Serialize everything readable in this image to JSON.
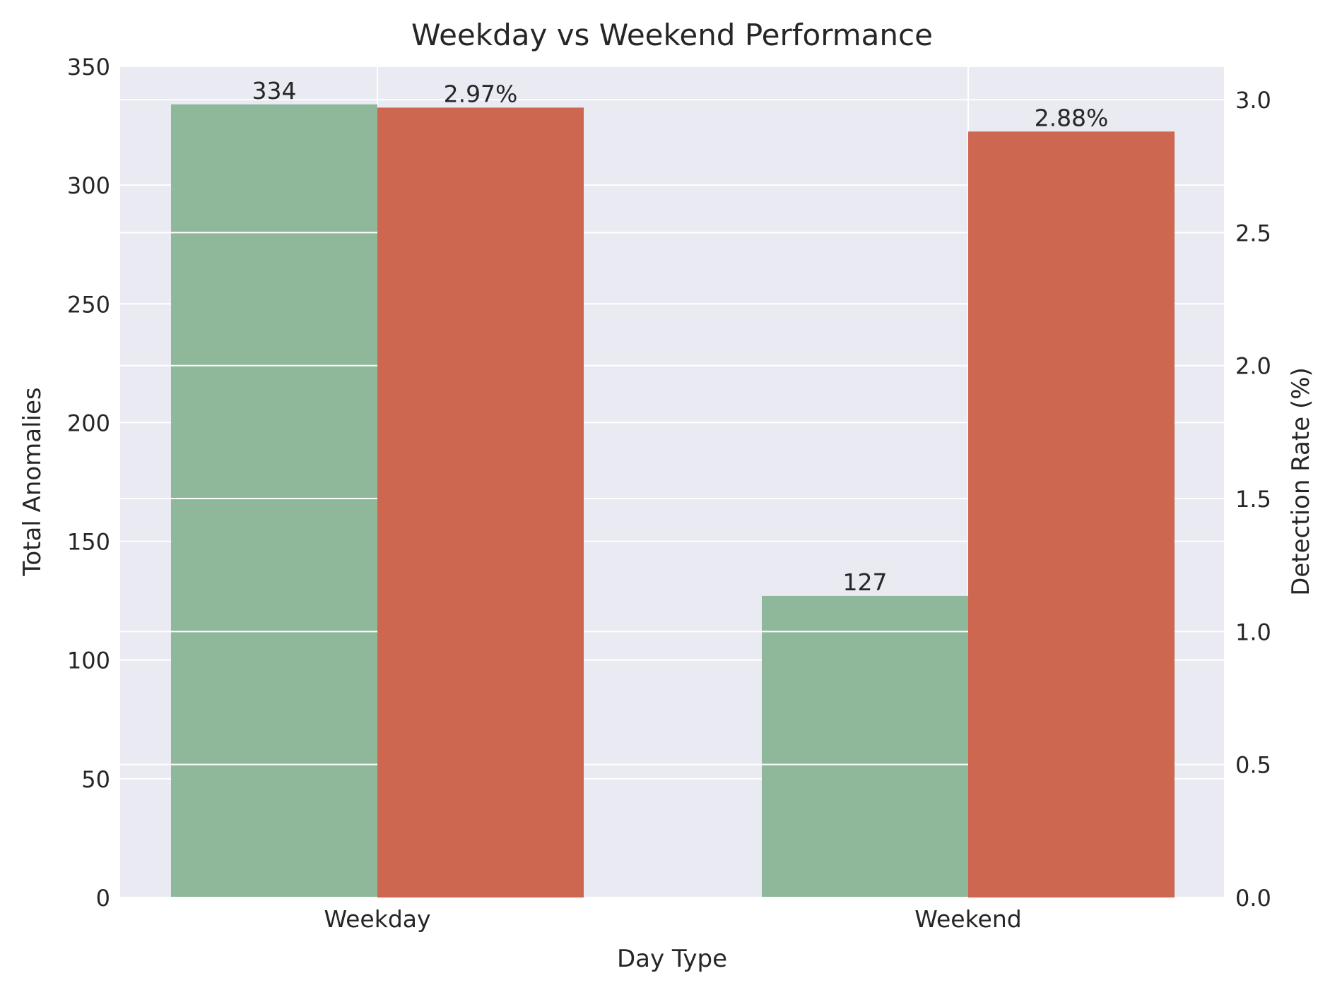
{
  "chart_data": {
    "type": "bar",
    "title": "Weekday vs Weekend Performance",
    "xlabel": "Day Type",
    "ylabel_left": "Total Anomalies",
    "ylabel_right": "Detection Rate (%)",
    "categories": [
      "Weekday",
      "Weekend"
    ],
    "series": [
      {
        "axis": "left",
        "values": [
          334,
          127
        ],
        "labels": [
          "334",
          "127"
        ],
        "color": "#8fb89b"
      },
      {
        "axis": "right",
        "values": [
          2.97,
          2.88
        ],
        "labels": [
          "2.97%",
          "2.88%"
        ],
        "color": "#cd6750"
      }
    ],
    "ylim_left": [
      0,
      350
    ],
    "ylim_right": [
      0,
      3.125
    ],
    "yticks_left": [
      "0",
      "50",
      "100",
      "150",
      "200",
      "250",
      "300",
      "350"
    ],
    "yticks_right": [
      "0.0",
      "0.5",
      "1.0",
      "1.5",
      "2.0",
      "2.5",
      "3.0"
    ],
    "grid": true,
    "colors": {
      "background": "#eaeaf2",
      "grid": "#ffffff",
      "left_label": "#6ea87c",
      "right_label": "#cc3a1c"
    }
  }
}
